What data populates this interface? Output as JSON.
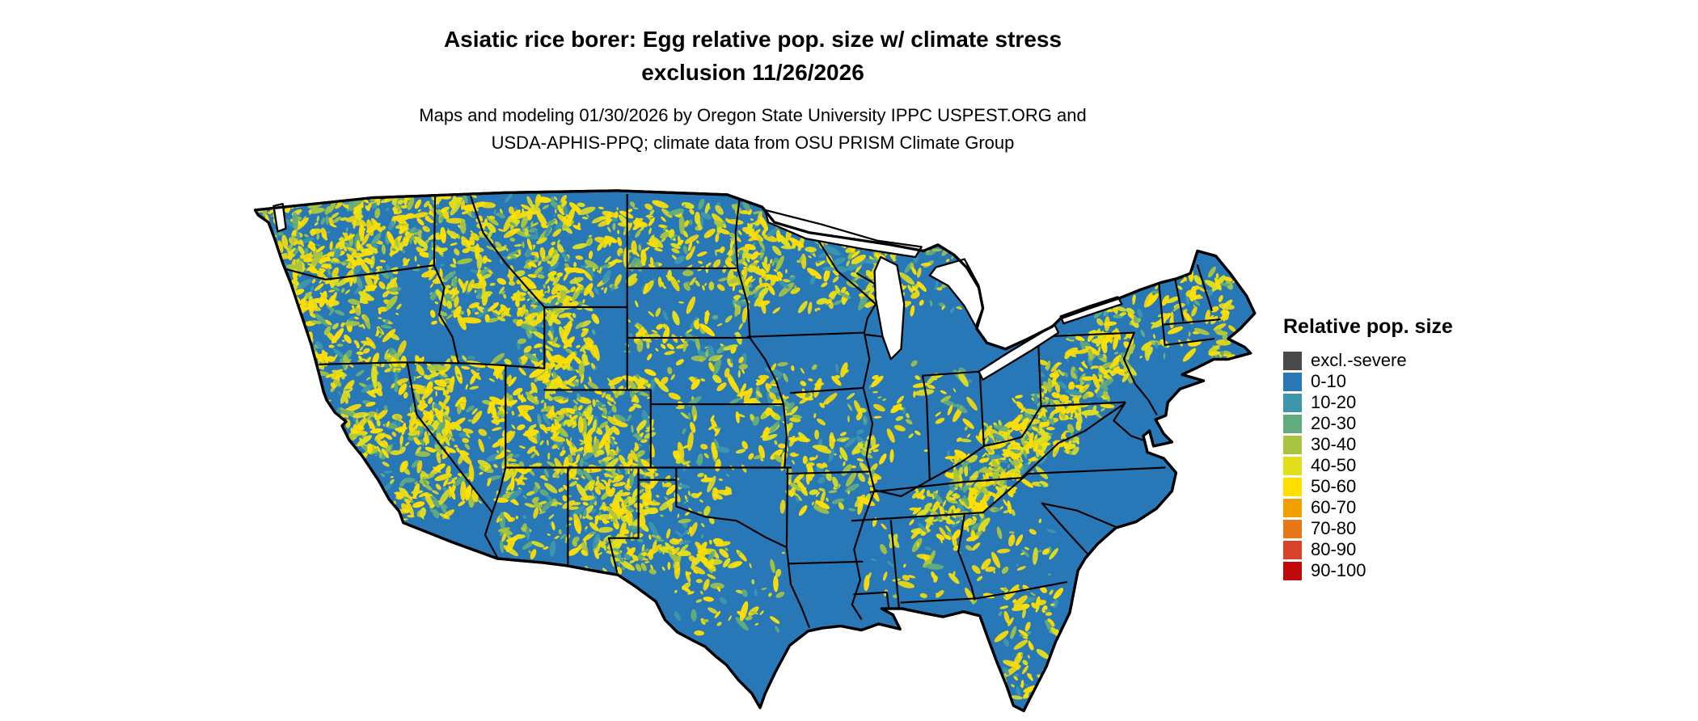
{
  "header": {
    "title_line1": "Asiatic rice borer: Egg relative pop. size w/ climate stress",
    "title_line2": "exclusion 11/26/2026",
    "subtitle_line1": "Maps and modeling 01/30/2026 by Oregon State University IPPC USPEST.ORG and",
    "subtitle_line2": "USDA-APHIS-PPQ; climate data from OSU PRISM Climate Group"
  },
  "legend": {
    "title": "Relative pop. size",
    "items": [
      {
        "label": "excl.-severe",
        "color": "#4a4a4a"
      },
      {
        "label": "0-10",
        "color": "#2878b8"
      },
      {
        "label": "10-20",
        "color": "#3e96ad"
      },
      {
        "label": "20-30",
        "color": "#62ab7e"
      },
      {
        "label": "30-40",
        "color": "#a9c53f"
      },
      {
        "label": "40-50",
        "color": "#e2df1d"
      },
      {
        "label": "50-60",
        "color": "#ffdf00"
      },
      {
        "label": "60-70",
        "color": "#f0a000"
      },
      {
        "label": "70-80",
        "color": "#e67817"
      },
      {
        "label": "80-90",
        "color": "#d8432a"
      },
      {
        "label": "90-100",
        "color": "#c00a0a"
      }
    ]
  },
  "map": {
    "region_depicted": "Contiguous United States",
    "land_base_color": "#2878b8",
    "hotspot_color": "#ffdf00",
    "water_color": "#ffffff",
    "boundary_color": "#000000"
  }
}
